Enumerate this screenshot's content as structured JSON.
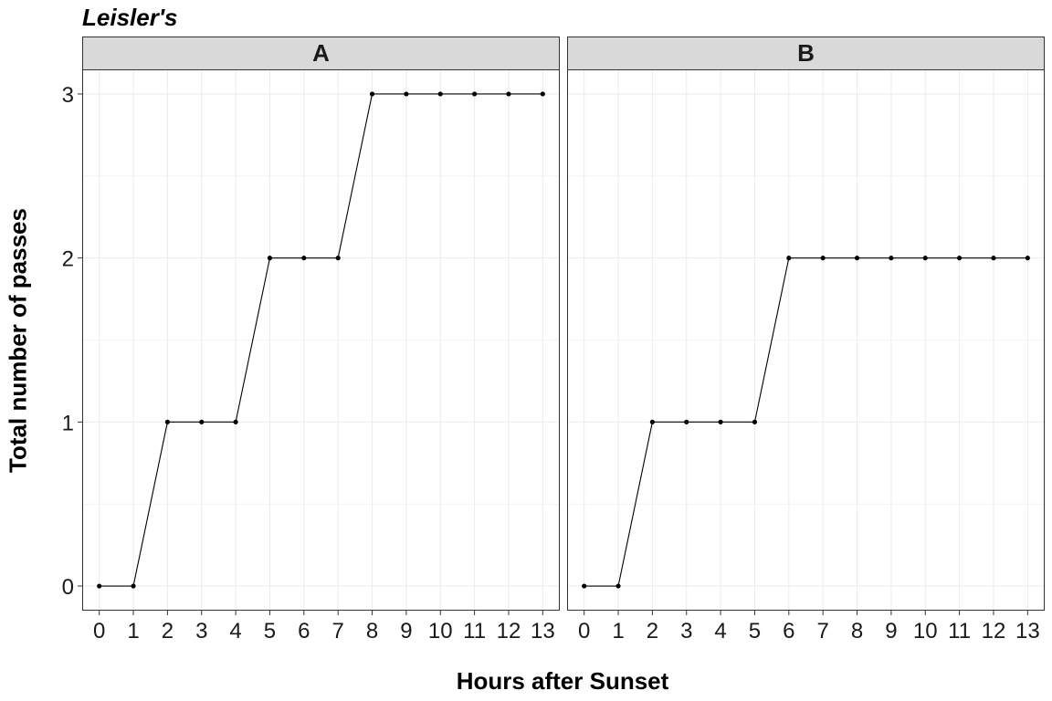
{
  "chart_data": {
    "type": "line",
    "title": "Leisler's",
    "xlabel": "Hours after Sunset",
    "ylabel": "Total number of passes",
    "x": [
      0,
      1,
      2,
      3,
      4,
      5,
      6,
      7,
      8,
      9,
      10,
      11,
      12,
      13
    ],
    "xlim": [
      -0.5,
      13.5
    ],
    "ylim": [
      -0.15,
      3.15
    ],
    "yticks": [
      0,
      1,
      2,
      3
    ],
    "grid": true,
    "legend": "none",
    "panels": [
      {
        "name": "A",
        "values": [
          0,
          0,
          1,
          1,
          1,
          2,
          2,
          2,
          3,
          3,
          3,
          3,
          3,
          3
        ]
      },
      {
        "name": "B",
        "values": [
          0,
          0,
          1,
          1,
          1,
          1,
          2,
          2,
          2,
          2,
          2,
          2,
          2,
          2
        ]
      }
    ],
    "colors": {
      "line": "#000000",
      "point": "#000000",
      "strip_fill": "#d9d9d9",
      "grid_major": "#ebebeb",
      "grid_minor": "#f4f4f4",
      "border": "#333333"
    }
  }
}
